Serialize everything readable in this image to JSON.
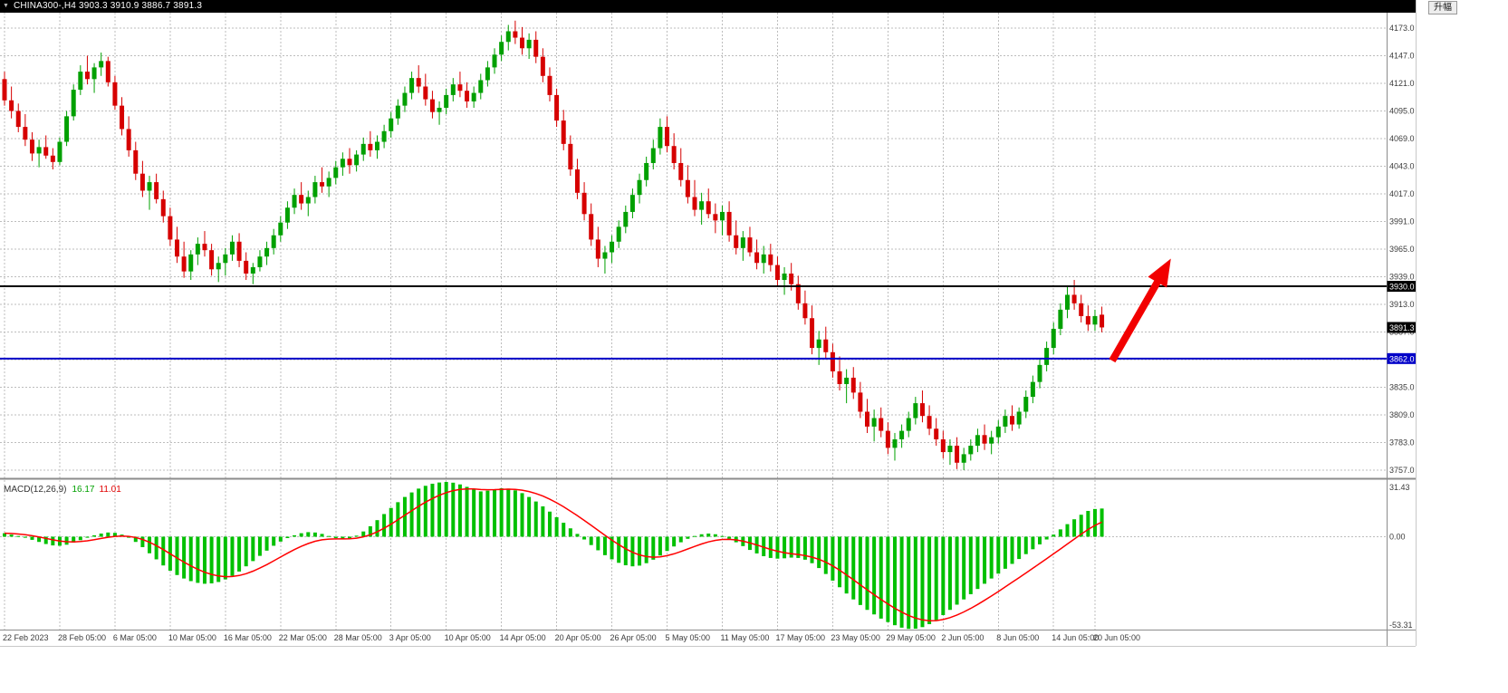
{
  "window": {
    "dropdown_icon": "▼",
    "title": "CHINA300-,H4 3903.3 3910.9 3886.7 3891.3"
  },
  "corner_button": {
    "label": "升幅"
  },
  "chart_data": [
    {
      "type": "candlestick",
      "symbol": "CHINA300-",
      "timeframe": "H4",
      "current_ohlc": {
        "open": 3903.3,
        "high": 3910.9,
        "low": 3886.7,
        "close": 3891.3
      },
      "price_gridlines": [
        4173.0,
        4147.0,
        4121.0,
        4095.0,
        4069.0,
        4043.0,
        4017.0,
        3991.0,
        3965.0,
        3939.0,
        3913.0,
        3887.0,
        3861.0,
        3835.0,
        3809.0,
        3783.0,
        3757.0
      ],
      "hidden_axis_labels": [
        3861.0
      ],
      "hlines": [
        {
          "price": 3930.0,
          "label": "3930.0",
          "color": "#000000"
        },
        {
          "price": 3862.0,
          "label": "3862.0",
          "color": "#0000C8"
        }
      ],
      "current_price_marker": {
        "price": 3891.3,
        "label": "3891.3",
        "color": "#000000"
      },
      "time_labels": [
        {
          "text": "22 Feb 2023",
          "idx": 0
        },
        {
          "text": "28 Feb 05:00",
          "idx": 8
        },
        {
          "text": "6 Mar 05:00",
          "idx": 16
        },
        {
          "text": "10 Mar 05:00",
          "idx": 24
        },
        {
          "text": "16 Mar 05:00",
          "idx": 32
        },
        {
          "text": "22 Mar 05:00",
          "idx": 40
        },
        {
          "text": "28 Mar 05:00",
          "idx": 48
        },
        {
          "text": "3 Apr 05:00",
          "idx": 56
        },
        {
          "text": "10 Apr 05:00",
          "idx": 64
        },
        {
          "text": "14 Apr 05:00",
          "idx": 72
        },
        {
          "text": "20 Apr 05:00",
          "idx": 80
        },
        {
          "text": "26 Apr 05:00",
          "idx": 88
        },
        {
          "text": "5 May 05:00",
          "idx": 96
        },
        {
          "text": "11 May 05:00",
          "idx": 104
        },
        {
          "text": "17 May 05:00",
          "idx": 112
        },
        {
          "text": "23 May 05:00",
          "idx": 120
        },
        {
          "text": "29 May 05:00",
          "idx": 128
        },
        {
          "text": "2 Jun 05:00",
          "idx": 136
        },
        {
          "text": "8 Jun 05:00",
          "idx": 144
        },
        {
          "text": "14 Jun 05:00",
          "idx": 152
        },
        {
          "text": "20 Jun 05:00",
          "idx": 158
        }
      ],
      "candles": [
        [
          4125,
          4132,
          4100,
          4105
        ],
        [
          4105,
          4118,
          4088,
          4095
        ],
        [
          4095,
          4102,
          4075,
          4080
        ],
        [
          4080,
          4092,
          4062,
          4068
        ],
        [
          4068,
          4075,
          4048,
          4055
        ],
        [
          4055,
          4068,
          4042,
          4061
        ],
        [
          4061,
          4072,
          4050,
          4053
        ],
        [
          4053,
          4060,
          4040,
          4047
        ],
        [
          4047,
          4070,
          4044,
          4066
        ],
        [
          4066,
          4095,
          4062,
          4090
        ],
        [
          4090,
          4120,
          4086,
          4115
        ],
        [
          4115,
          4138,
          4110,
          4132
        ],
        [
          4132,
          4147,
          4120,
          4125
        ],
        [
          4125,
          4140,
          4112,
          4136
        ],
        [
          4136,
          4150,
          4128,
          4142
        ],
        [
          4142,
          4146,
          4118,
          4122
        ],
        [
          4122,
          4128,
          4096,
          4100
        ],
        [
          4100,
          4108,
          4072,
          4078
        ],
        [
          4078,
          4090,
          4052,
          4058
        ],
        [
          4058,
          4066,
          4030,
          4036
        ],
        [
          4036,
          4048,
          4014,
          4020
        ],
        [
          4020,
          4034,
          4002,
          4028
        ],
        [
          4028,
          4036,
          4008,
          4012
        ],
        [
          4012,
          4020,
          3990,
          3996
        ],
        [
          3996,
          4004,
          3968,
          3974
        ],
        [
          3974,
          3986,
          3952,
          3958
        ],
        [
          3958,
          3972,
          3938,
          3944
        ],
        [
          3944,
          3964,
          3936,
          3960
        ],
        [
          3960,
          3976,
          3950,
          3970
        ],
        [
          3970,
          3982,
          3958,
          3964
        ],
        [
          3964,
          3970,
          3940,
          3946
        ],
        [
          3946,
          3958,
          3934,
          3952
        ],
        [
          3952,
          3966,
          3940,
          3960
        ],
        [
          3960,
          3978,
          3954,
          3972
        ],
        [
          3972,
          3980,
          3948,
          3954
        ],
        [
          3954,
          3962,
          3936,
          3942
        ],
        [
          3942,
          3952,
          3932,
          3948
        ],
        [
          3948,
          3964,
          3944,
          3958
        ],
        [
          3958,
          3972,
          3950,
          3966
        ],
        [
          3966,
          3984,
          3960,
          3978
        ],
        [
          3978,
          3996,
          3972,
          3990
        ],
        [
          3990,
          4010,
          3984,
          4004
        ],
        [
          4004,
          4022,
          3998,
          4016
        ],
        [
          4016,
          4028,
          4002,
          4008
        ],
        [
          4008,
          4020,
          3996,
          4014
        ],
        [
          4014,
          4034,
          4008,
          4028
        ],
        [
          4028,
          4042,
          4018,
          4024
        ],
        [
          4024,
          4038,
          4014,
          4032
        ],
        [
          4032,
          4048,
          4026,
          4042
        ],
        [
          4042,
          4056,
          4034,
          4050
        ],
        [
          4050,
          4060,
          4036,
          4044
        ],
        [
          4044,
          4058,
          4038,
          4054
        ],
        [
          4054,
          4070,
          4048,
          4064
        ],
        [
          4064,
          4076,
          4052,
          4058
        ],
        [
          4058,
          4072,
          4050,
          4066
        ],
        [
          4066,
          4082,
          4060,
          4076
        ],
        [
          4076,
          4094,
          4070,
          4088
        ],
        [
          4088,
          4106,
          4082,
          4100
        ],
        [
          4100,
          4118,
          4094,
          4112
        ],
        [
          4112,
          4132,
          4106,
          4126
        ],
        [
          4126,
          4138,
          4112,
          4118
        ],
        [
          4118,
          4130,
          4100,
          4106
        ],
        [
          4106,
          4114,
          4088,
          4094
        ],
        [
          4094,
          4104,
          4082,
          4098
        ],
        [
          4098,
          4116,
          4092,
          4110
        ],
        [
          4110,
          4126,
          4104,
          4120
        ],
        [
          4120,
          4132,
          4108,
          4114
        ],
        [
          4114,
          4122,
          4098,
          4104
        ],
        [
          4104,
          4118,
          4098,
          4112
        ],
        [
          4112,
          4130,
          4106,
          4124
        ],
        [
          4124,
          4142,
          4118,
          4136
        ],
        [
          4136,
          4154,
          4130,
          4148
        ],
        [
          4148,
          4166,
          4142,
          4160
        ],
        [
          4160,
          4176,
          4152,
          4170
        ],
        [
          4170,
          4180,
          4158,
          4164
        ],
        [
          4164,
          4174,
          4148,
          4154
        ],
        [
          4154,
          4168,
          4144,
          4162
        ],
        [
          4162,
          4170,
          4140,
          4146
        ],
        [
          4146,
          4154,
          4122,
          4128
        ],
        [
          4128,
          4136,
          4104,
          4110
        ],
        [
          4110,
          4116,
          4080,
          4086
        ],
        [
          4086,
          4096,
          4058,
          4064
        ],
        [
          4064,
          4072,
          4034,
          4040
        ],
        [
          4040,
          4050,
          4012,
          4018
        ],
        [
          4018,
          4028,
          3992,
          3998
        ],
        [
          3998,
          4008,
          3968,
          3974
        ],
        [
          3974,
          3986,
          3948,
          3956
        ],
        [
          3956,
          3968,
          3942,
          3962
        ],
        [
          3962,
          3978,
          3952,
          3972
        ],
        [
          3972,
          3992,
          3966,
          3986
        ],
        [
          3986,
          4006,
          3980,
          4000
        ],
        [
          4000,
          4022,
          3994,
          4016
        ],
        [
          4016,
          4036,
          4008,
          4030
        ],
        [
          4030,
          4052,
          4024,
          4046
        ],
        [
          4046,
          4068,
          4040,
          4060
        ],
        [
          4060,
          4088,
          4054,
          4080
        ],
        [
          4080,
          4090,
          4056,
          4062
        ],
        [
          4062,
          4074,
          4040,
          4046
        ],
        [
          4046,
          4060,
          4024,
          4030
        ],
        [
          4030,
          4044,
          4008,
          4014
        ],
        [
          4014,
          4030,
          3996,
          4002
        ],
        [
          4002,
          4018,
          3988,
          4010
        ],
        [
          4010,
          4022,
          3994,
          3998
        ],
        [
          3998,
          4008,
          3980,
          3992
        ],
        [
          3992,
          4006,
          3978,
          4000
        ],
        [
          4000,
          4010,
          3972,
          3978
        ],
        [
          3978,
          3992,
          3960,
          3966
        ],
        [
          3966,
          3982,
          3954,
          3976
        ],
        [
          3976,
          3986,
          3958,
          3962
        ],
        [
          3962,
          3974,
          3946,
          3952
        ],
        [
          3952,
          3968,
          3942,
          3960
        ],
        [
          3960,
          3970,
          3944,
          3950
        ],
        [
          3950,
          3958,
          3930,
          3936
        ],
        [
          3936,
          3948,
          3922,
          3942
        ],
        [
          3942,
          3952,
          3926,
          3932
        ],
        [
          3932,
          3940,
          3908,
          3914
        ],
        [
          3914,
          3926,
          3894,
          3900
        ],
        [
          3900,
          3912,
          3866,
          3872
        ],
        [
          3872,
          3888,
          3856,
          3880
        ],
        [
          3880,
          3892,
          3862,
          3868
        ],
        [
          3868,
          3876,
          3844,
          3850
        ],
        [
          3850,
          3864,
          3832,
          3838
        ],
        [
          3838,
          3852,
          3820,
          3844
        ],
        [
          3844,
          3854,
          3824,
          3830
        ],
        [
          3830,
          3840,
          3806,
          3812
        ],
        [
          3812,
          3824,
          3792,
          3798
        ],
        [
          3798,
          3814,
          3784,
          3806
        ],
        [
          3806,
          3816,
          3788,
          3794
        ],
        [
          3794,
          3802,
          3772,
          3778
        ],
        [
          3778,
          3792,
          3766,
          3786
        ],
        [
          3786,
          3800,
          3778,
          3794
        ],
        [
          3794,
          3812,
          3788,
          3806
        ],
        [
          3806,
          3826,
          3800,
          3820
        ],
        [
          3820,
          3832,
          3802,
          3808
        ],
        [
          3808,
          3818,
          3790,
          3796
        ],
        [
          3796,
          3806,
          3780,
          3786
        ],
        [
          3786,
          3794,
          3768,
          3774
        ],
        [
          3774,
          3786,
          3762,
          3780
        ],
        [
          3780,
          3788,
          3758,
          3764
        ],
        [
          3764,
          3778,
          3757,
          3772
        ],
        [
          3772,
          3786,
          3766,
          3780
        ],
        [
          3780,
          3796,
          3774,
          3790
        ],
        [
          3790,
          3800,
          3776,
          3782
        ],
        [
          3782,
          3794,
          3772,
          3788
        ],
        [
          3788,
          3804,
          3782,
          3798
        ],
        [
          3798,
          3814,
          3792,
          3808
        ],
        [
          3808,
          3818,
          3794,
          3800
        ],
        [
          3800,
          3816,
          3796,
          3812
        ],
        [
          3812,
          3832,
          3806,
          3826
        ],
        [
          3826,
          3846,
          3820,
          3840
        ],
        [
          3840,
          3862,
          3834,
          3856
        ],
        [
          3856,
          3878,
          3850,
          3872
        ],
        [
          3872,
          3896,
          3866,
          3890
        ],
        [
          3890,
          3914,
          3884,
          3908
        ],
        [
          3908,
          3930,
          3900,
          3922
        ],
        [
          3922,
          3936,
          3908,
          3914
        ],
        [
          3914,
          3922,
          3896,
          3902
        ],
        [
          3902,
          3912,
          3888,
          3894
        ],
        [
          3894,
          3908,
          3888,
          3902
        ],
        [
          3903.3,
          3910.9,
          3886.7,
          3891.3
        ]
      ],
      "colors": {
        "up": "#00A000",
        "down": "#D60000",
        "grid": "#BDBDBD",
        "background": "#FFFFFF",
        "axis_text": "#3C3C3C"
      },
      "arrow_annotation": {
        "from_idx": 160.5,
        "from_price": 3860,
        "to_idx": 169,
        "to_price": 3956,
        "color": "#F20000"
      }
    },
    {
      "type": "bar",
      "title": "MACD(12,26,9)",
      "macd_value": "16.17",
      "signal_value": "11.01",
      "ylim": [
        -53.31,
        31.43
      ],
      "y_axis_labels": [
        "31.43",
        "0.00",
        "-53.31"
      ],
      "signal_period": 9,
      "histogram": [
        2,
        1.2,
        0.4,
        -0.6,
        -1.8,
        -3,
        -4.2,
        -5,
        -5.2,
        -4.6,
        -3.4,
        -2,
        -0.6,
        0.8,
        1.8,
        2.4,
        2.2,
        1.2,
        -0.6,
        -3,
        -6,
        -9.5,
        -13,
        -16.5,
        -19.5,
        -22,
        -24,
        -25.5,
        -26.5,
        -27,
        -26.8,
        -26,
        -24.5,
        -22.5,
        -20,
        -17,
        -14,
        -11,
        -8,
        -5.2,
        -2.8,
        -0.8,
        0.8,
        2,
        2.6,
        2.4,
        1.6,
        0.4,
        -0.8,
        -1.4,
        -1,
        0.6,
        3,
        6,
        9.5,
        13,
        16.5,
        19.8,
        22.8,
        25.4,
        27.6,
        29.2,
        30.4,
        31.1,
        31.43,
        31,
        30,
        28.6,
        27,
        26,
        26.4,
        27.2,
        27.8,
        27.6,
        26.6,
        25,
        22.8,
        20.2,
        17.4,
        14.4,
        11.2,
        8,
        4.8,
        1.6,
        -1.6,
        -4.8,
        -7.8,
        -10.6,
        -13,
        -15,
        -16.4,
        -17,
        -16.6,
        -15.2,
        -13.2,
        -10.8,
        -8.2,
        -5.6,
        -3.2,
        -1.2,
        0.4,
        1.4,
        1.8,
        1.4,
        0.4,
        -1.2,
        -3.2,
        -5.4,
        -7.6,
        -9.6,
        -11.2,
        -12.2,
        -12.6,
        -12.4,
        -12,
        -12.2,
        -13.2,
        -15.2,
        -18,
        -21.4,
        -25.2,
        -29,
        -32.6,
        -36,
        -39.2,
        -42,
        -44.6,
        -47,
        -49,
        -50.8,
        -52.2,
        -52.9,
        -52.8,
        -51.9,
        -50.2,
        -47.8,
        -45,
        -42,
        -39,
        -36,
        -33,
        -30,
        -27,
        -24,
        -21.2,
        -18.4,
        -15.6,
        -12.8,
        -10,
        -7.2,
        -4.4,
        -1.6,
        1.2,
        4.2,
        7.2,
        10,
        12.6,
        14.8,
        15.9,
        16.17
      ],
      "colors": {
        "histogram": "#00C000",
        "signal": "#FF0000"
      }
    }
  ]
}
